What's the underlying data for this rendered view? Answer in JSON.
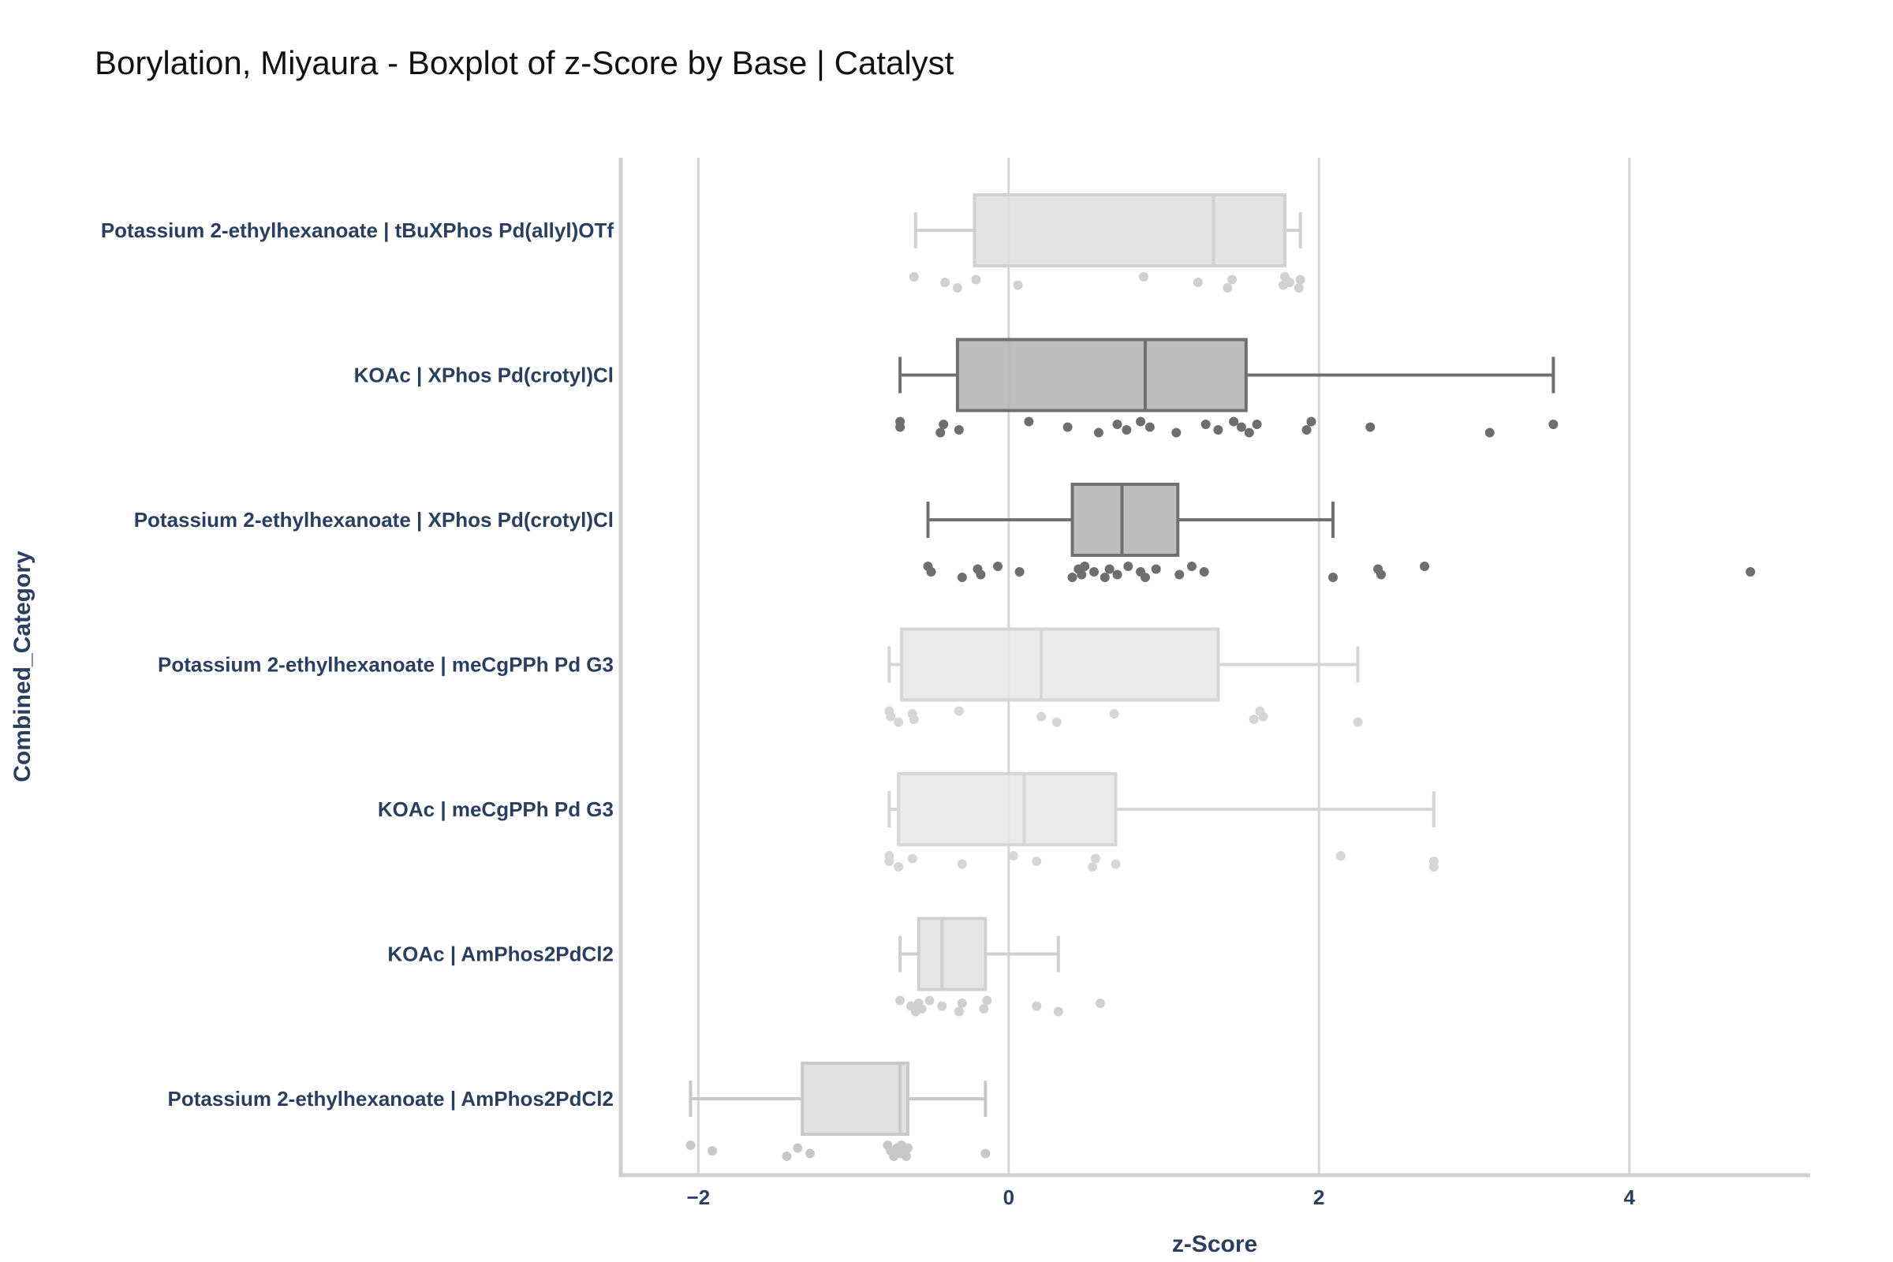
{
  "chart_data": {
    "type": "box",
    "title": "Borylation, Miyaura - Boxplot of z-Score by Base | Catalyst",
    "xlabel": "z-Score",
    "ylabel": "Combined_Category",
    "xlim": [
      -2.5,
      5.15
    ],
    "xticks": [
      -2,
      0,
      2,
      4
    ],
    "xtick_labels": [
      "−2",
      "0",
      "2",
      "4"
    ],
    "grid": "vertical",
    "orientation": "horizontal",
    "categories": [
      {
        "label": "Potassium 2-ethylhexanoate | tBuXPhos Pd(allyl)OTf",
        "color": "#dedede",
        "stroke": "#d0d0d0",
        "whisker_low": -0.6,
        "q1": -0.22,
        "median": 1.32,
        "q3": 1.78,
        "whisker_high": 1.88,
        "points": [
          -0.61,
          -0.41,
          -0.33,
          -0.21,
          0.06,
          0.87,
          1.22,
          1.41,
          1.44,
          1.77,
          1.78,
          1.81,
          1.87,
          1.88
        ]
      },
      {
        "label": "KOAc | XPhos Pd(crotyl)Cl",
        "color": "#b3b3b3",
        "stroke": "#707070",
        "whisker_low": -0.7,
        "q1": -0.33,
        "median": 0.88,
        "q3": 1.53,
        "whisker_high": 3.51,
        "points": [
          -0.7,
          -0.7,
          -0.44,
          -0.42,
          -0.32,
          0.13,
          0.38,
          0.58,
          0.7,
          0.76,
          0.85,
          0.91,
          1.08,
          1.27,
          1.35,
          1.45,
          1.5,
          1.55,
          1.6,
          1.92,
          1.95,
          2.33,
          3.1,
          3.51
        ]
      },
      {
        "label": "Potassium 2-ethylhexanoate | XPhos Pd(crotyl)Cl",
        "color": "#b3b3b3",
        "stroke": "#707070",
        "whisker_low": -0.52,
        "q1": 0.41,
        "median": 0.73,
        "q3": 1.09,
        "whisker_high": 2.09,
        "points": [
          -0.52,
          -0.5,
          -0.3,
          -0.2,
          -0.18,
          -0.07,
          0.07,
          0.41,
          0.45,
          0.47,
          0.49,
          0.55,
          0.62,
          0.65,
          0.7,
          0.77,
          0.85,
          0.88,
          0.95,
          1.1,
          1.18,
          1.26,
          2.09,
          2.38,
          2.4,
          2.68,
          4.78
        ]
      },
      {
        "label": "Potassium 2-ethylhexanoate | meCgPPh Pd G3",
        "color": "#e6e6e6",
        "stroke": "#d6d6d6",
        "whisker_low": -0.77,
        "q1": -0.69,
        "median": 0.21,
        "q3": 1.35,
        "whisker_high": 2.25,
        "points": [
          -0.77,
          -0.76,
          -0.71,
          -0.62,
          -0.61,
          -0.32,
          0.21,
          0.31,
          0.68,
          1.58,
          1.62,
          1.64,
          2.25
        ]
      },
      {
        "label": "KOAc | meCgPPh Pd G3",
        "color": "#e6e6e6",
        "stroke": "#d6d6d6",
        "whisker_low": -0.77,
        "q1": -0.71,
        "median": 0.1,
        "q3": 0.69,
        "whisker_high": 2.74,
        "points": [
          -0.77,
          -0.77,
          -0.71,
          -0.62,
          -0.3,
          0.03,
          0.18,
          0.54,
          0.56,
          0.69,
          2.14,
          2.74,
          2.74
        ]
      },
      {
        "label": "KOAc | AmPhos2PdCl2",
        "color": "#e2e2e2",
        "stroke": "#d0d0d0",
        "whisker_low": -0.7,
        "q1": -0.58,
        "median": -0.43,
        "q3": -0.15,
        "whisker_high": 0.32,
        "points": [
          -0.7,
          -0.63,
          -0.6,
          -0.58,
          -0.56,
          -0.51,
          -0.43,
          -0.32,
          -0.3,
          -0.16,
          -0.14,
          0.18,
          0.32,
          0.59
        ]
      },
      {
        "label": "Potassium 2-ethylhexanoate | AmPhos2PdCl2",
        "color": "#dcdcdc",
        "stroke": "#c8c8c8",
        "whisker_low": -2.05,
        "q1": -1.33,
        "median": -0.7,
        "q3": -0.65,
        "whisker_high": -0.15,
        "points": [
          -2.05,
          -1.91,
          -1.43,
          -1.36,
          -1.28,
          -0.78,
          -0.76,
          -0.74,
          -0.72,
          -0.7,
          -0.69,
          -0.68,
          -0.66,
          -0.65,
          -0.15
        ]
      }
    ]
  }
}
